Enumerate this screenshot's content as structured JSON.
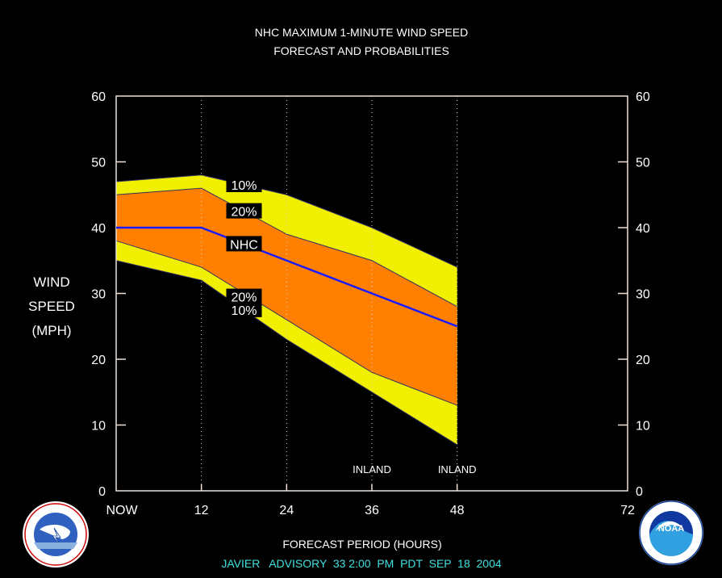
{
  "chart_data": {
    "type": "area",
    "title": "NHC MAXIMUM 1-MINUTE WIND SPEED",
    "subtitle": "FORECAST AND PROBABILITIES",
    "xlabel": "FORECAST PERIOD (HOURS)",
    "ylabel_lines": [
      "WIND",
      "SPEED",
      "(MPH)"
    ],
    "footer": "JAVIER   ADVISORY  33 2:00  PM  PDT  SEP  18  2004",
    "xlim": [
      0,
      72
    ],
    "ylim": [
      0,
      60
    ],
    "x_ticks": [
      {
        "value": 0,
        "label": "NOW"
      },
      {
        "value": 12,
        "label": "12"
      },
      {
        "value": 24,
        "label": "24"
      },
      {
        "value": 36,
        "label": "36"
      },
      {
        "value": 48,
        "label": "48"
      },
      {
        "value": 72,
        "label": "72"
      }
    ],
    "y_ticks": [
      0,
      10,
      20,
      30,
      40,
      50,
      60
    ],
    "x": [
      0,
      12,
      24,
      36,
      48
    ],
    "series": [
      {
        "name": "10%",
        "upper": [
          47,
          48,
          45,
          40,
          34
        ],
        "lower": [
          35,
          32,
          23,
          15,
          7
        ]
      },
      {
        "name": "20%",
        "upper": [
          45,
          46,
          39,
          35,
          28
        ],
        "lower": [
          38,
          34,
          26,
          18,
          13
        ]
      },
      {
        "name": "NHC",
        "values": [
          40,
          40,
          35,
          30,
          25
        ]
      }
    ],
    "annotations": [
      {
        "text": "INLAND",
        "x": 36
      },
      {
        "text": "INLAND",
        "x": 48
      }
    ],
    "band_labels": [
      {
        "text": "10%",
        "x": 18,
        "y": 46.5
      },
      {
        "text": "20%",
        "x": 18,
        "y": 42.5
      },
      {
        "text": "NHC",
        "x": 18,
        "y": 37.5
      },
      {
        "text": "20%",
        "x": 18,
        "y": 29.5
      },
      {
        "text": "10%",
        "x": 18,
        "y": 27.5
      }
    ],
    "colors": {
      "band_10": "#f0f000",
      "band_20": "#ff8000",
      "nhc_line": "#1a1aff",
      "footer": "#40e0e0",
      "axes": "#f0e0d8"
    }
  },
  "logos": {
    "nws": {
      "icon": "nws-logo-icon",
      "text": "NATIONAL WEATHER SERVICE"
    },
    "noaa": {
      "icon": "noaa-logo-icon",
      "text": "NOAA"
    }
  }
}
